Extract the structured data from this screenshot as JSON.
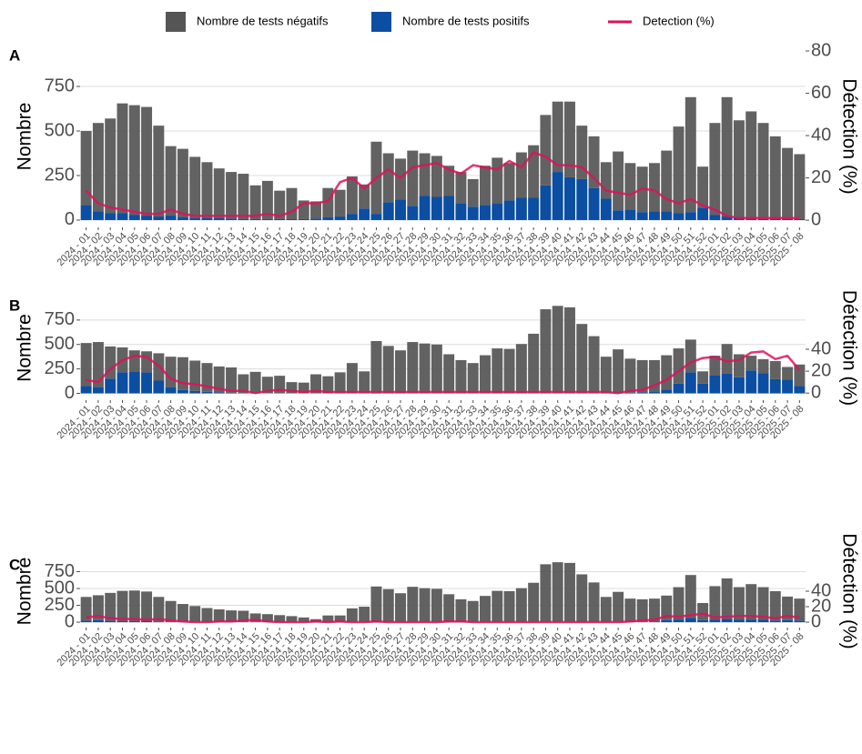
{
  "legend": [
    {
      "name": "Nombre de tests négatifs",
      "color": "#555555"
    },
    {
      "name": "Nombre de tests positifs",
      "color": "#0b4ea2"
    },
    {
      "name": "Detection (%)",
      "color": "#e0105a"
    }
  ],
  "chart_data": [
    {
      "type": "bar",
      "label": "A",
      "ylabel": "Nombre",
      "y2label": "Détection (%)",
      "categories": [
        "2024 - 01",
        "2024 - 02",
        "2024 - 03",
        "2024 - 04",
        "2024 - 05",
        "2024 - 06",
        "2024 - 07",
        "2024 - 08",
        "2024 - 09",
        "2024 - 10",
        "2024 - 11",
        "2024 - 12",
        "2024 - 13",
        "2024 - 14",
        "2024 - 15",
        "2024 - 16",
        "2024 - 17",
        "2024 - 18",
        "2024 - 19",
        "2024 - 20",
        "2024 - 21",
        "2024 - 22",
        "2024 - 23",
        "2024 - 24",
        "2024 - 25",
        "2024 - 26",
        "2024 - 27",
        "2024 - 28",
        "2024 - 29",
        "2024 - 30",
        "2024 - 31",
        "2024 - 32",
        "2024 - 33",
        "2024 - 34",
        "2024 - 35",
        "2024 - 36",
        "2024 - 37",
        "2024 - 38",
        "2024 - 39",
        "2024 - 40",
        "2024 - 41",
        "2024 - 42",
        "2024 - 43",
        "2024 - 44",
        "2024 - 45",
        "2024 - 46",
        "2024 - 47",
        "2024 - 48",
        "2024 - 49",
        "2024 - 50",
        "2024 - 51",
        "2024 - 52",
        "2025 - 01",
        "2025 - 02",
        "2025 - 03",
        "2025 - 04",
        "2025 - 05",
        "2025 - 06",
        "2025 - 07",
        "2025 - 08"
      ],
      "positives": [
        85,
        50,
        40,
        40,
        30,
        25,
        20,
        25,
        15,
        10,
        10,
        10,
        8,
        5,
        5,
        5,
        5,
        5,
        5,
        8,
        15,
        20,
        35,
        65,
        35,
        100,
        115,
        80,
        135,
        130,
        135,
        95,
        75,
        85,
        95,
        110,
        125,
        125,
        195,
        270,
        240,
        230,
        180,
        120,
        55,
        60,
        45,
        50,
        50,
        40,
        45,
        70,
        30,
        20,
        15,
        10,
        5,
        5,
        5,
        5
      ],
      "negatives": [
        415,
        495,
        530,
        615,
        615,
        610,
        510,
        390,
        385,
        345,
        315,
        280,
        262,
        255,
        190,
        215,
        160,
        175,
        105,
        97,
        165,
        150,
        210,
        135,
        405,
        275,
        230,
        310,
        240,
        230,
        170,
        175,
        155,
        220,
        255,
        210,
        255,
        295,
        395,
        395,
        425,
        300,
        290,
        205,
        330,
        260,
        255,
        270,
        340,
        485,
        645,
        230,
        515,
        670,
        545,
        600,
        540,
        465,
        400,
        365
      ],
      "detection": [
        14,
        8,
        6,
        5,
        4,
        3,
        3,
        5,
        3,
        2,
        2,
        2,
        2,
        2,
        2,
        3,
        2,
        4,
        8,
        8,
        9,
        18,
        20,
        15,
        20,
        24,
        20,
        25,
        26,
        27,
        24,
        22,
        26,
        25,
        24,
        28,
        25,
        32,
        30,
        26,
        26,
        25,
        20,
        14,
        13,
        12,
        15,
        14,
        10,
        8,
        10,
        7,
        5,
        2,
        1,
        1,
        1,
        1,
        1,
        1
      ],
      "ylim": [
        -41,
        980
      ],
      "yticks": [
        0,
        250,
        500,
        750
      ],
      "y2lim": [
        -3.4,
        82.6
      ],
      "y2ticks": [
        0,
        20,
        40,
        60,
        80
      ],
      "grid": true
    },
    {
      "type": "bar",
      "label": "B",
      "ylabel": "Nombre",
      "y2label": "Détection (%)",
      "categories": [
        "2024 - 01",
        "2024 - 02",
        "2024 - 03",
        "2024 - 04",
        "2024 - 05",
        "2024 - 06",
        "2024 - 07",
        "2024 - 08",
        "2024 - 09",
        "2024 - 10",
        "2024 - 11",
        "2024 - 12",
        "2024 - 13",
        "2024 - 14",
        "2024 - 15",
        "2024 - 16",
        "2024 - 17",
        "2024 - 18",
        "2024 - 19",
        "2024 - 20",
        "2024 - 21",
        "2024 - 22",
        "2024 - 23",
        "2024 - 24",
        "2024 - 25",
        "2024 - 26",
        "2024 - 27",
        "2024 - 28",
        "2024 - 29",
        "2024 - 30",
        "2024 - 31",
        "2024 - 32",
        "2024 - 33",
        "2024 - 34",
        "2024 - 35",
        "2024 - 36",
        "2024 - 37",
        "2024 - 38",
        "2024 - 39",
        "2024 - 40",
        "2024 - 41",
        "2024 - 42",
        "2024 - 43",
        "2024 - 44",
        "2024 - 45",
        "2024 - 46",
        "2024 - 47",
        "2024 - 48",
        "2024 - 49",
        "2024 - 50",
        "2024 - 51",
        "2024 - 52",
        "2025 - 01",
        "2025 - 02",
        "2025 - 03",
        "2025 - 04",
        "2025 - 05",
        "2025 - 06",
        "2025 - 07",
        "2025 - 08"
      ],
      "positives": [
        75,
        60,
        150,
        215,
        225,
        215,
        130,
        60,
        35,
        25,
        15,
        10,
        5,
        3,
        2,
        2,
        2,
        2,
        2,
        2,
        2,
        2,
        2,
        2,
        5,
        3,
        2,
        2,
        2,
        2,
        2,
        2,
        2,
        2,
        3,
        2,
        2,
        2,
        2,
        2,
        2,
        3,
        3,
        5,
        5,
        5,
        10,
        20,
        40,
        100,
        215,
        100,
        185,
        200,
        165,
        235,
        205,
        145,
        140,
        75
      ],
      "negatives": [
        440,
        465,
        330,
        255,
        215,
        215,
        280,
        315,
        335,
        310,
        295,
        265,
        260,
        192,
        218,
        168,
        178,
        113,
        108,
        193,
        173,
        213,
        308,
        223,
        530,
        482,
        438,
        523,
        508,
        498,
        398,
        338,
        308,
        388,
        457,
        453,
        503,
        608,
        858,
        893,
        878,
        707,
        582,
        370,
        445,
        350,
        330,
        320,
        350,
        360,
        335,
        125,
        200,
        305,
        235,
        150,
        145,
        185,
        130,
        220
      ],
      "detection": [
        12,
        10,
        22,
        30,
        34,
        33,
        25,
        13,
        9,
        8,
        6,
        4,
        2,
        2,
        0,
        2,
        3,
        2,
        1,
        2,
        1,
        1,
        1,
        1,
        1,
        1,
        1,
        1,
        1,
        1,
        1,
        1,
        1,
        1,
        1,
        1,
        1,
        1,
        1,
        1,
        1,
        1,
        1,
        1,
        0,
        2,
        3,
        7,
        12,
        20,
        28,
        32,
        33,
        29,
        30,
        37,
        38,
        31,
        34,
        21
      ],
      "ylim": [
        -70,
        1000
      ],
      "yticks": [
        0,
        250,
        500,
        750
      ],
      "y2lim": [
        -6.5,
        89
      ],
      "y2ticks": [
        0,
        20,
        40
      ],
      "grid": true
    },
    {
      "type": "bar",
      "label": "C",
      "ylabel": "Nombre",
      "y2label": "Détection (%)",
      "categories": [
        "2024 - 01",
        "2024 - 02",
        "2024 - 03",
        "2024 - 04",
        "2024 - 05",
        "2024 - 06",
        "2024 - 07",
        "2024 - 08",
        "2024 - 09",
        "2024 - 10",
        "2024 - 11",
        "2024 - 12",
        "2024 - 13",
        "2024 - 14",
        "2024 - 15",
        "2024 - 16",
        "2024 - 17",
        "2024 - 18",
        "2024 - 19",
        "2024 - 20",
        "2024 - 21",
        "2024 - 22",
        "2024 - 23",
        "2024 - 24",
        "2024 - 25",
        "2024 - 26",
        "2024 - 27",
        "2024 - 28",
        "2024 - 29",
        "2024 - 30",
        "2024 - 31",
        "2024 - 32",
        "2024 - 33",
        "2024 - 34",
        "2024 - 35",
        "2024 - 36",
        "2024 - 37",
        "2024 - 38",
        "2024 - 39",
        "2024 - 40",
        "2024 - 41",
        "2024 - 42",
        "2024 - 43",
        "2024 - 44",
        "2024 - 45",
        "2024 - 46",
        "2024 - 47",
        "2024 - 48",
        "2024 - 49",
        "2024 - 50",
        "2024 - 51",
        "2024 - 52",
        "2025 - 01",
        "2025 - 02",
        "2025 - 03",
        "2025 - 04",
        "2025 - 05",
        "2025 - 06",
        "2025 - 07",
        "2025 - 08"
      ],
      "positives": [
        25,
        30,
        20,
        15,
        15,
        15,
        10,
        5,
        3,
        2,
        2,
        2,
        2,
        2,
        3,
        2,
        2,
        2,
        2,
        2,
        2,
        2,
        2,
        2,
        3,
        2,
        2,
        2,
        2,
        2,
        2,
        2,
        2,
        2,
        2,
        2,
        2,
        2,
        2,
        2,
        2,
        2,
        2,
        2,
        2,
        2,
        5,
        10,
        30,
        40,
        65,
        30,
        40,
        50,
        40,
        40,
        35,
        25,
        30,
        25
      ],
      "negatives": [
        350,
        370,
        415,
        450,
        455,
        440,
        365,
        310,
        267,
        238,
        208,
        188,
        173,
        168,
        127,
        118,
        103,
        88,
        68,
        43,
        98,
        98,
        203,
        228,
        527,
        488,
        428,
        523,
        503,
        493,
        413,
        338,
        313,
        388,
        463,
        458,
        503,
        583,
        858,
        888,
        878,
        708,
        588,
        373,
        448,
        348,
        335,
        340,
        365,
        480,
        635,
        255,
        495,
        600,
        480,
        525,
        485,
        435,
        350,
        325
      ],
      "detection": [
        6,
        8,
        5,
        4,
        4,
        3,
        4,
        2,
        1,
        0,
        0,
        1,
        1,
        2,
        3,
        1,
        0,
        0,
        0,
        1,
        0,
        1,
        0,
        0,
        1,
        0,
        0,
        0,
        0,
        0,
        1,
        1,
        0,
        0,
        0,
        0,
        0,
        0,
        0,
        0,
        0,
        0,
        0,
        0,
        0,
        1,
        2,
        3,
        8,
        7,
        9,
        11,
        6,
        7,
        8,
        8,
        7,
        5,
        8,
        6
      ],
      "ylim": [
        -80,
        1000
      ],
      "yticks": [
        0,
        250,
        500,
        750
      ],
      "y2lim": [
        -7,
        87
      ],
      "y2ticks": [
        0,
        20,
        40
      ],
      "grid": true
    }
  ]
}
